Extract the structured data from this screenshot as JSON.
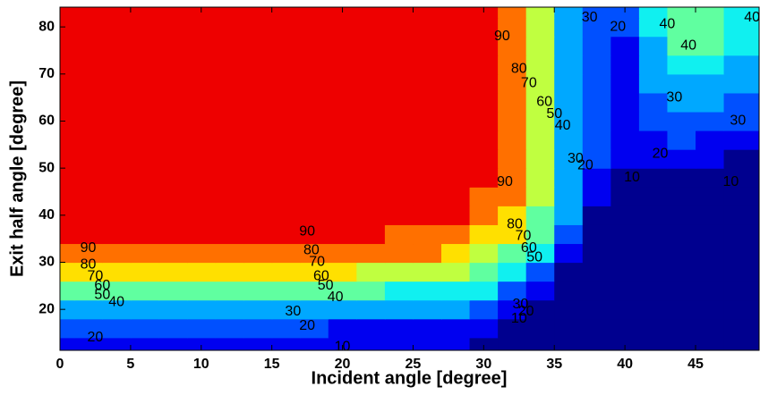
{
  "chart_data": {
    "type": "contour",
    "xlabel": "Incident angle [degree]",
    "ylabel": "Exit half angle [degree]",
    "xlim": [
      0,
      49.5
    ],
    "ylim": [
      11.3,
      84.2
    ],
    "xticks": [
      0,
      5,
      10,
      15,
      20,
      25,
      30,
      35,
      40,
      45
    ],
    "yticks": [
      20,
      30,
      40,
      50,
      60,
      70,
      80
    ],
    "levels": [
      10,
      20,
      30,
      40,
      50,
      60,
      70,
      80,
      90
    ],
    "colors": [
      "#00008f",
      "#0000f0",
      "#0050ff",
      "#00a8ff",
      "#10f0f0",
      "#60ffa0",
      "#c0ff40",
      "#ffe000",
      "#ff7000",
      "#ee0000",
      "#800000"
    ],
    "x": [
      0,
      2,
      4,
      6,
      8,
      10,
      12,
      14,
      16,
      18,
      20,
      22,
      24,
      26,
      28,
      30,
      32,
      34,
      36,
      38,
      40,
      42,
      44,
      46,
      48
    ],
    "y": [
      12,
      16,
      20,
      24,
      28,
      32,
      36,
      40,
      44,
      48,
      52,
      56,
      60,
      64,
      68,
      72,
      76,
      80,
      84
    ],
    "z": [
      [
        15,
        15,
        15,
        15,
        15,
        14,
        14,
        14,
        14,
        13,
        12,
        11,
        11,
        11,
        10,
        8,
        5,
        4,
        4,
        4,
        4,
        5,
        6,
        7,
        5
      ],
      [
        22,
        22,
        22,
        22,
        21,
        21,
        21,
        21,
        20,
        20,
        19,
        19,
        18,
        18,
        18,
        15,
        8,
        5,
        4,
        4,
        4,
        5,
        6,
        7,
        5
      ],
      [
        38,
        38,
        37,
        37,
        36,
        36,
        35,
        35,
        34,
        33,
        32,
        32,
        31,
        30,
        30,
        25,
        14,
        8,
        4,
        4,
        4,
        5,
        6,
        7,
        5
      ],
      [
        58,
        57,
        57,
        56,
        55,
        54,
        54,
        53,
        52,
        51,
        50,
        50,
        49,
        48,
        48,
        40,
        28,
        14,
        4,
        4,
        4,
        5,
        6,
        7,
        5
      ],
      [
        78,
        77,
        77,
        76,
        75,
        74,
        74,
        73,
        72,
        71,
        70,
        69,
        68,
        67,
        66,
        55,
        45,
        28,
        8,
        4,
        4,
        5,
        6,
        7,
        5
      ],
      [
        88,
        88,
        88,
        87,
        87,
        87,
        86,
        86,
        85,
        84,
        83,
        82,
        81,
        80,
        78,
        68,
        58,
        42,
        15,
        4,
        4,
        5,
        6,
        7,
        5
      ],
      [
        96,
        96,
        95,
        95,
        95,
        94,
        94,
        93,
        93,
        92,
        91,
        90,
        89,
        88,
        87,
        78,
        70,
        52,
        24,
        4,
        4,
        5,
        6,
        7,
        5
      ],
      [
        98,
        98,
        98,
        98,
        98,
        98,
        98,
        98,
        97,
        97,
        96,
        95,
        94,
        93,
        91,
        85,
        78,
        58,
        32,
        6,
        4,
        5,
        6,
        7,
        5
      ],
      [
        98,
        98,
        98,
        98,
        98,
        98,
        98,
        98,
        98,
        98,
        98,
        98,
        98,
        98,
        98,
        89,
        82,
        62,
        34,
        12,
        4,
        5,
        6,
        7,
        5
      ],
      [
        98,
        98,
        98,
        98,
        98,
        98,
        98,
        98,
        98,
        98,
        98,
        98,
        98,
        98,
        98,
        92,
        83,
        63,
        36,
        17,
        8,
        5,
        6,
        7,
        5
      ],
      [
        98,
        98,
        98,
        98,
        98,
        98,
        98,
        98,
        98,
        98,
        98,
        98,
        98,
        98,
        98,
        92,
        84,
        63,
        36,
        22,
        12,
        10,
        12,
        11,
        5
      ],
      [
        98,
        98,
        98,
        98,
        98,
        98,
        98,
        98,
        98,
        98,
        98,
        98,
        98,
        98,
        98,
        92,
        84,
        63,
        36,
        22,
        14,
        17,
        20,
        18,
        10
      ],
      [
        98,
        98,
        98,
        98,
        98,
        98,
        98,
        98,
        98,
        98,
        98,
        98,
        98,
        98,
        98,
        92,
        84,
        63,
        36,
        22,
        15,
        22,
        27,
        25,
        20
      ],
      [
        98,
        98,
        98,
        98,
        98,
        98,
        98,
        98,
        98,
        98,
        98,
        98,
        98,
        98,
        98,
        92,
        84,
        63,
        36,
        22,
        15,
        25,
        33,
        30,
        26
      ],
      [
        98,
        98,
        98,
        98,
        98,
        98,
        98,
        98,
        98,
        98,
        98,
        98,
        98,
        98,
        98,
        92,
        84,
        63,
        36,
        22,
        15,
        30,
        38,
        38,
        33
      ],
      [
        98,
        98,
        98,
        98,
        98,
        98,
        98,
        98,
        98,
        98,
        98,
        98,
        98,
        98,
        98,
        92,
        84,
        63,
        36,
        22,
        15,
        33,
        44,
        45,
        38
      ],
      [
        98,
        98,
        98,
        98,
        98,
        98,
        98,
        98,
        98,
        98,
        98,
        98,
        98,
        98,
        98,
        92,
        84,
        63,
        36,
        22,
        18,
        36,
        52,
        50,
        41
      ],
      [
        98,
        98,
        98,
        98,
        98,
        98,
        98,
        98,
        98,
        98,
        98,
        98,
        98,
        98,
        98,
        92,
        84,
        63,
        36,
        22,
        20,
        40,
        55,
        55,
        42
      ],
      [
        98,
        98,
        98,
        98,
        98,
        98,
        98,
        98,
        98,
        98,
        98,
        98,
        98,
        98,
        98,
        92,
        84,
        63,
        35,
        22,
        22,
        42,
        56,
        56,
        42
      ]
    ]
  }
}
